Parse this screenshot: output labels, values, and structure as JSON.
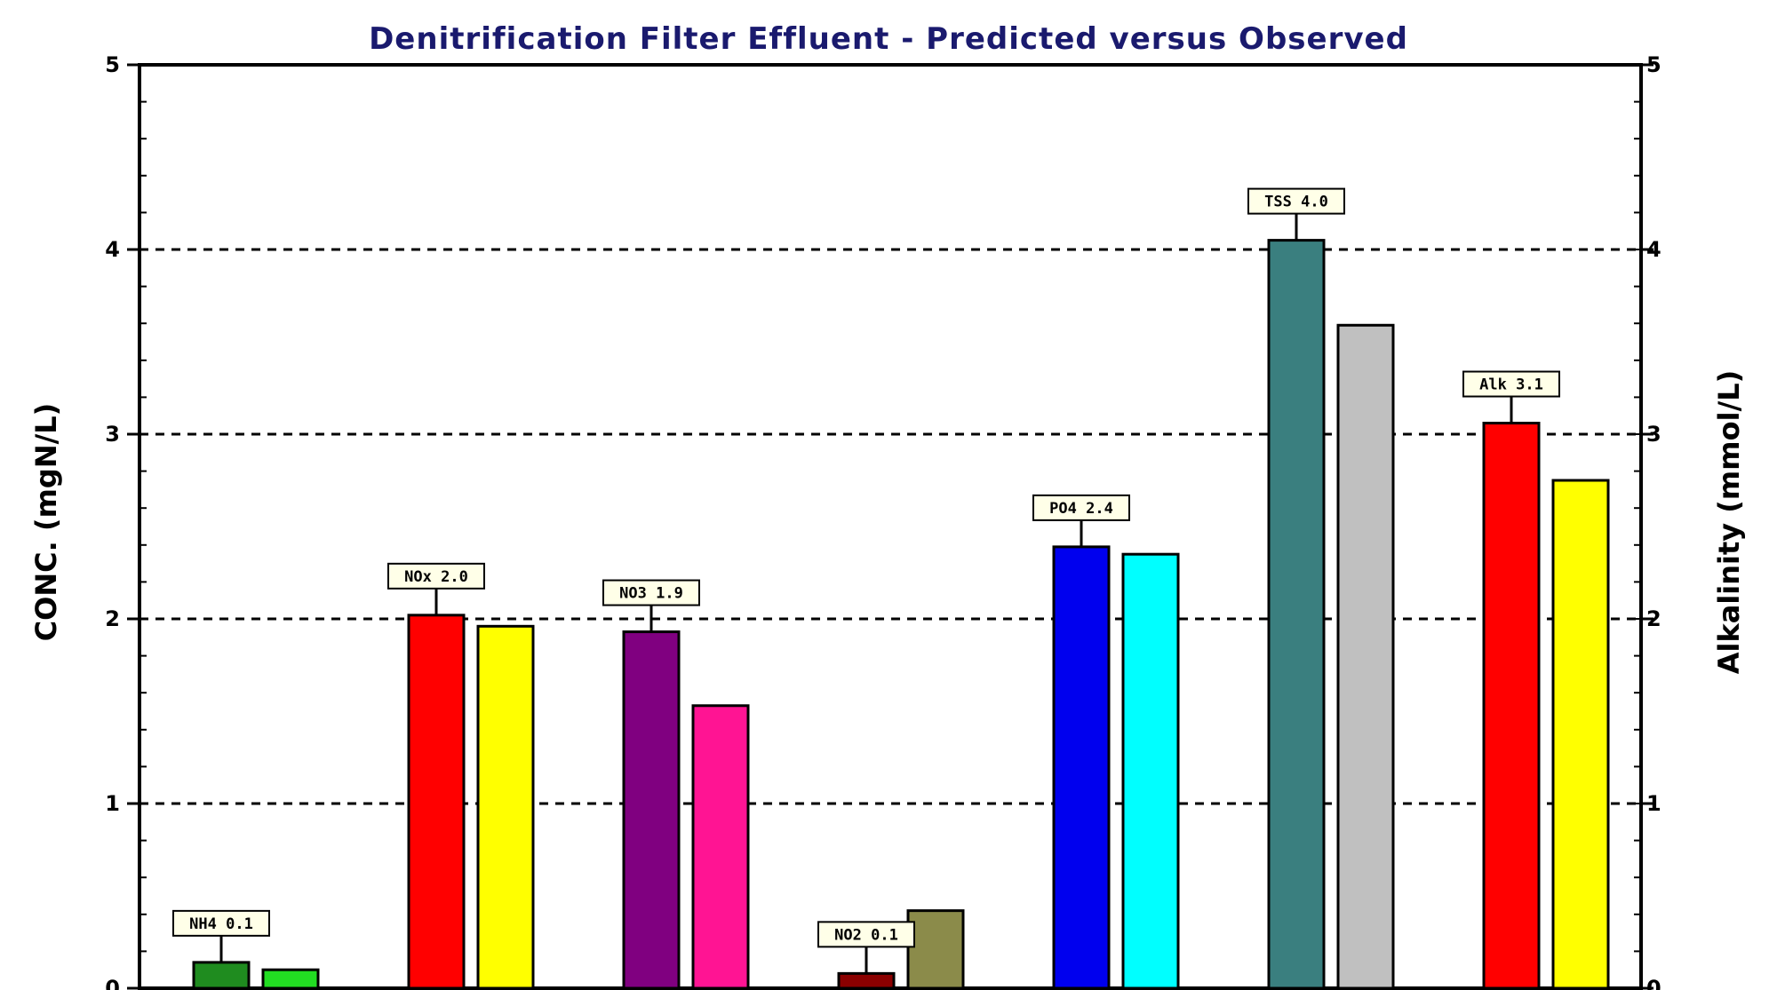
{
  "chart_data": {
    "type": "bar",
    "title": "Denitrification Filter Effluent - Predicted versus Observed",
    "ylabel": "CONC. (mgN/L)",
    "ylabel_right": "Alkalinity (mmol/L)",
    "ylim": [
      0,
      5
    ],
    "ylim_right": [
      0,
      5
    ],
    "yticks": [
      "0",
      "1",
      "2",
      "3",
      "4",
      "5"
    ],
    "grid": "dashed horizontal at 1, 2, 3, 4",
    "legend": "none",
    "groups": [
      {
        "label": "NH4  0.1",
        "predicted": 0.14,
        "observed": 0.1,
        "predicted_color": "#1f8c1f",
        "observed_color": "#22dd22"
      },
      {
        "label": "NOx  2.0",
        "predicted": 2.02,
        "observed": 1.96,
        "predicted_color": "#ff0000",
        "observed_color": "#ffff00"
      },
      {
        "label": "NO3  1.9",
        "predicted": 1.93,
        "observed": 1.53,
        "predicted_color": "#800080",
        "observed_color": "#ff1493"
      },
      {
        "label": "NO2  0.1",
        "predicted": 0.08,
        "observed": 0.42,
        "predicted_color": "#8b0000",
        "observed_color": "#8b8b4a"
      },
      {
        "label": "PO4  2.4",
        "predicted": 2.39,
        "observed": 2.35,
        "predicted_color": "#0000ee",
        "observed_color": "#00ffff"
      },
      {
        "label": "TSS  4.0",
        "predicted": 4.05,
        "observed": 3.59,
        "predicted_color": "#3a7f7f",
        "observed_color": "#c0c0c0"
      },
      {
        "label": "Alk  3.1",
        "predicted": 3.06,
        "observed": 2.75,
        "predicted_color": "#ff0000",
        "observed_color": "#ffff00"
      }
    ]
  }
}
